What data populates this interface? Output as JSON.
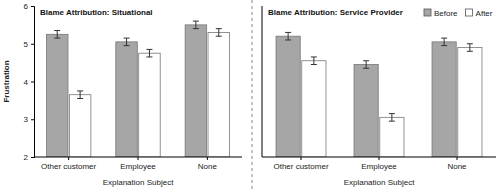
{
  "chart_data": [
    {
      "type": "bar",
      "title": "Blame Attribution: Situational",
      "x_label": "Explanation Subject",
      "y_label": "Frustration",
      "categories": [
        "Other customer",
        "Employee",
        "None"
      ],
      "series": [
        {
          "name": "Before",
          "color": "#a6a6a6",
          "values": [
            5.25,
            5.05,
            5.5
          ],
          "error": [
            0.1,
            0.1,
            0.1
          ]
        },
        {
          "name": "After",
          "color": "#ffffff",
          "values": [
            3.65,
            4.75,
            5.3
          ],
          "error": [
            0.1,
            0.1,
            0.1
          ]
        }
      ],
      "ylim": [
        2,
        6
      ],
      "yticks": [
        2,
        3,
        4,
        5,
        6
      ],
      "grid": false
    },
    {
      "type": "bar",
      "title": "Blame Attribution: Service Provider",
      "x_label": "Explanation Subject",
      "categories": [
        "Other customer",
        "Employee",
        "None"
      ],
      "series": [
        {
          "name": "Before",
          "color": "#a6a6a6",
          "values": [
            5.2,
            4.45,
            5.05
          ],
          "error": [
            0.1,
            0.1,
            0.1
          ]
        },
        {
          "name": "After",
          "color": "#ffffff",
          "values": [
            4.55,
            3.05,
            4.9
          ],
          "error": [
            0.1,
            0.1,
            0.1
          ]
        }
      ],
      "ylim": [
        2,
        6
      ],
      "grid": false,
      "tick_labels": "x",
      "legend": "top-right"
    }
  ]
}
